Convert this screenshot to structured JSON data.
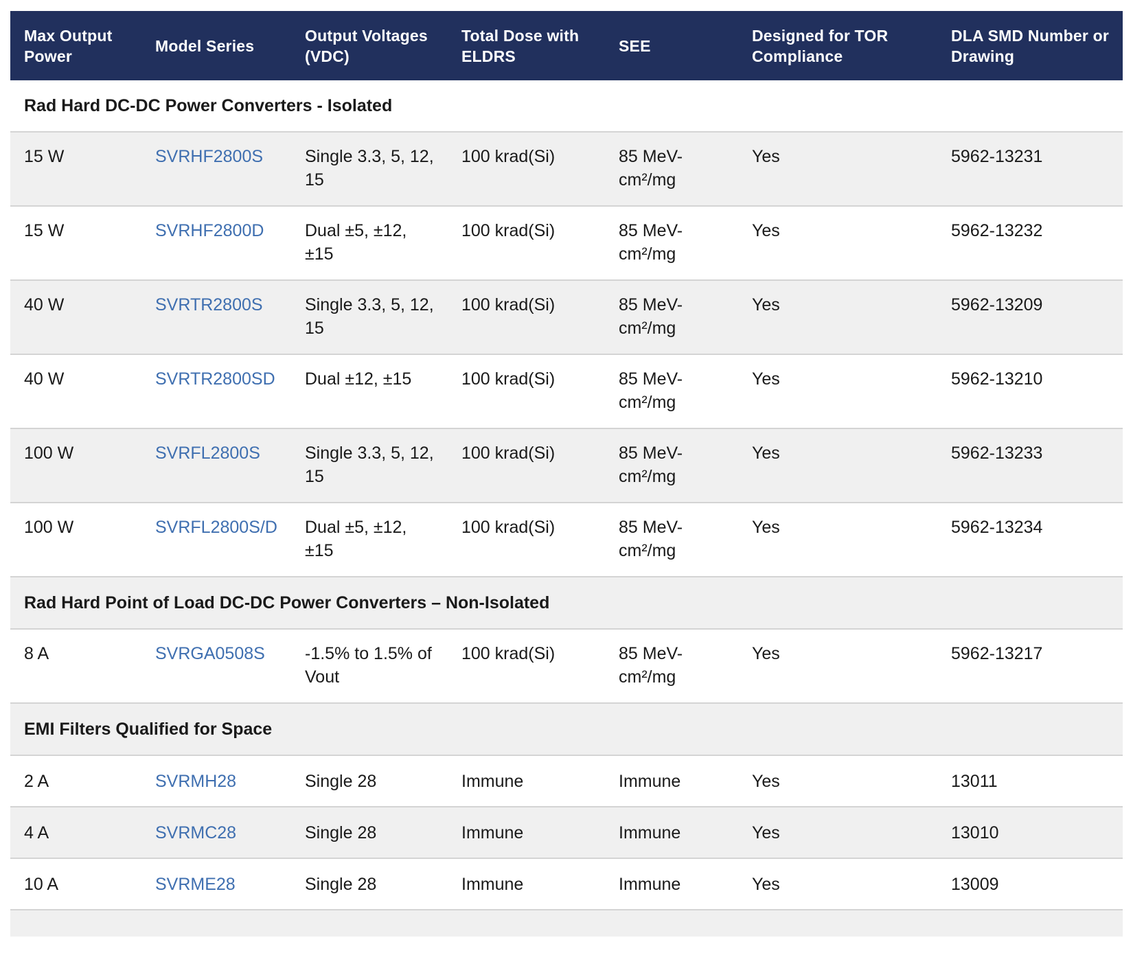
{
  "headers": [
    "Max Output Power",
    "Model Series",
    "Output Voltages (VDC)",
    "Total Dose with ELDRS",
    "SEE",
    "Designed for TOR Compliance",
    "DLA SMD Number or Drawing"
  ],
  "sections": [
    {
      "title": "Rad Hard DC-DC Power Converters - Isolated",
      "rows": [
        {
          "power": "15 W",
          "model": "SVRHF2800S",
          "voltages": "Single 3.3, 5, 12, 15",
          "dose": "100 krad(Si)",
          "see": "85 MeV-cm²/mg",
          "tor": "Yes",
          "dla": "5962-13231"
        },
        {
          "power": "15 W",
          "model": "SVRHF2800D",
          "voltages": "Dual ±5, ±12, ±15",
          "dose": "100 krad(Si)",
          "see": "85 MeV-cm²/mg",
          "tor": "Yes",
          "dla": "5962-13232"
        },
        {
          "power": "40 W",
          "model": "SVRTR2800S",
          "voltages": "Single 3.3, 5, 12, 15",
          "dose": "100 krad(Si)",
          "see": "85 MeV-cm²/mg",
          "tor": "Yes",
          "dla": "5962-13209"
        },
        {
          "power": "40 W",
          "model": "SVRTR2800SD",
          "voltages": "Dual ±12, ±15",
          "dose": "100 krad(Si)",
          "see": "85 MeV-cm²/mg",
          "tor": "Yes",
          "dla": "5962-13210"
        },
        {
          "power": "100 W",
          "model": "SVRFL2800S",
          "voltages": "Single 3.3, 5, 12, 15",
          "dose": "100 krad(Si)",
          "see": "85 MeV-cm²/mg",
          "tor": "Yes",
          "dla": "5962-13233"
        },
        {
          "power": "100 W",
          "model": "SVRFL2800S/D",
          "voltages": "Dual ±5, ±12, ±15",
          "dose": "100 krad(Si)",
          "see": "85 MeV-cm²/mg",
          "tor": "Yes",
          "dla": "5962-13234"
        }
      ]
    },
    {
      "title": "Rad Hard Point of Load DC-DC Power Converters – Non-Isolated",
      "rows": [
        {
          "power": "8 A",
          "model": "SVRGA0508S",
          "voltages": "-1.5% to 1.5% of Vout",
          "dose": "100 krad(Si)",
          "see": "85 MeV-cm²/mg",
          "tor": "Yes",
          "dla": "5962-13217"
        }
      ]
    },
    {
      "title": "EMI Filters Qualified for Space",
      "rows": [
        {
          "power": "2 A",
          "model": "SVRMH28",
          "voltages": "Single 28",
          "dose": "Immune",
          "see": "Immune",
          "tor": "Yes",
          "dla": "13011"
        },
        {
          "power": "4 A",
          "model": "SVRMC28",
          "voltages": "Single 28",
          "dose": "Immune",
          "see": "Immune",
          "tor": "Yes",
          "dla": "13010"
        },
        {
          "power": "10 A",
          "model": "SVRME28",
          "voltages": "Single 28",
          "dose": "Immune",
          "see": "Immune",
          "tor": "Yes",
          "dla": "13009"
        }
      ]
    }
  ],
  "colors": {
    "header_bg": "#21305d",
    "link": "#3f6fb0",
    "stripe": "#f0f0f0"
  }
}
